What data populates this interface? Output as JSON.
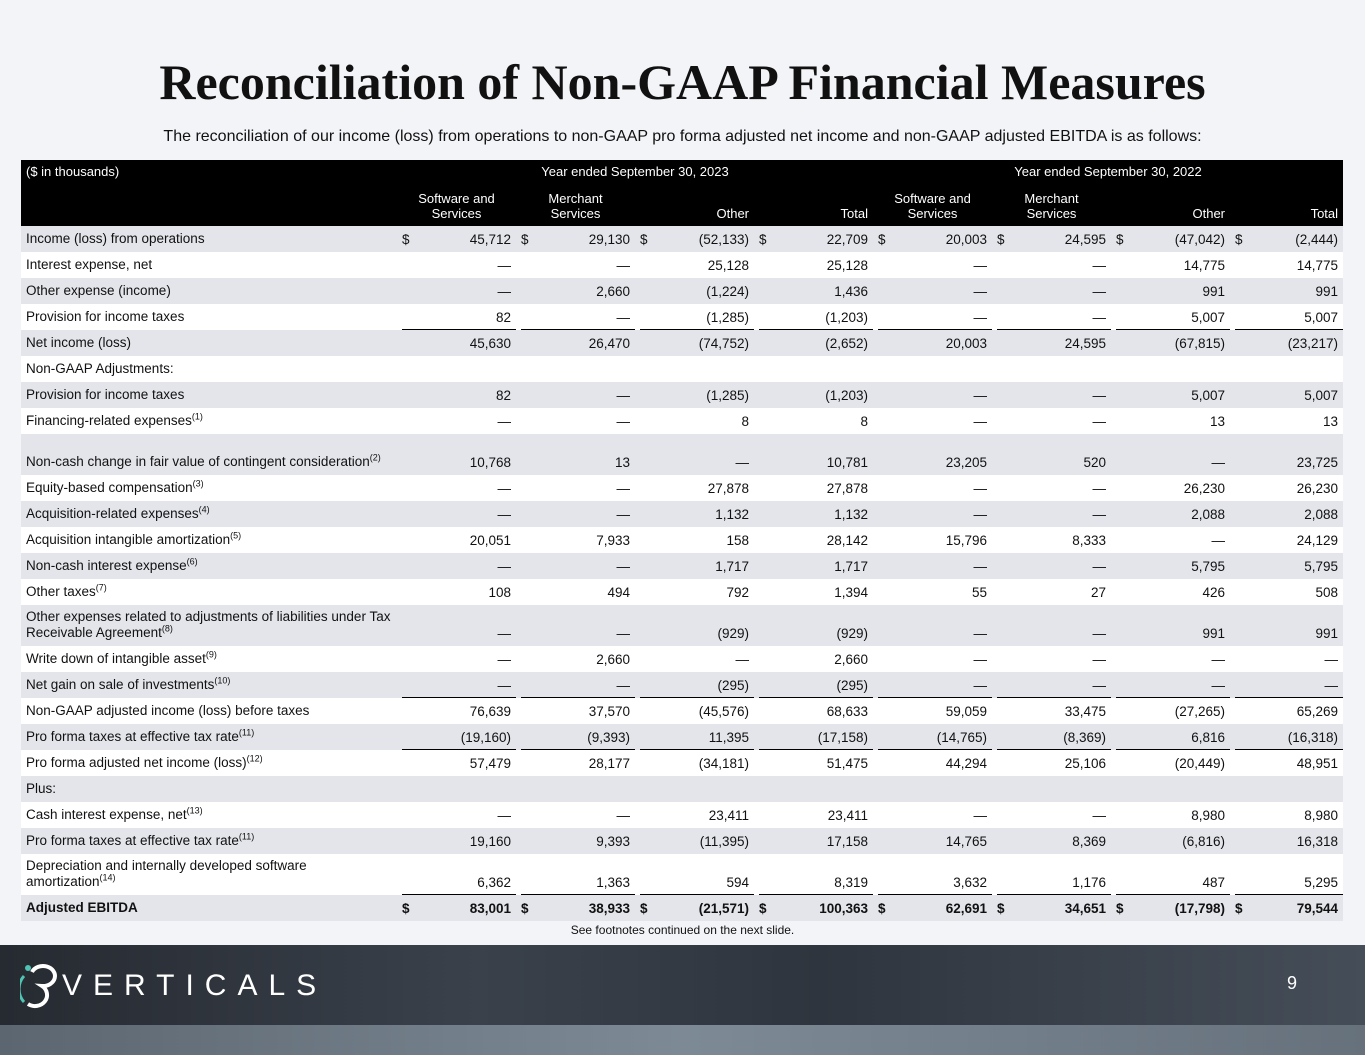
{
  "title": "Reconciliation of Non-GAAP Financial Measures",
  "subtitle": "The reconciliation of our income (loss) from operations to non-GAAP pro forma adjusted net income and non-GAAP adjusted EBITDA is as follows:",
  "table": {
    "units": "($ in thousands)",
    "currency_symbol": "$",
    "groups": [
      "Year ended September 30, 2023",
      "Year ended September 30, 2022"
    ],
    "columns": [
      "Software and Services",
      "Merchant Services",
      "Other",
      "Total",
      "Software and Services",
      "Merchant Services",
      "Other",
      "Total"
    ],
    "rows": [
      {
        "label": "Income (loss) from operations",
        "currency": true,
        "values": [
          "45,712",
          "29,130",
          "(52,133)",
          "22,709",
          "20,003",
          "24,595",
          "(47,042)",
          "(2,444)"
        ]
      },
      {
        "label": "Interest expense, net",
        "values": [
          "—",
          "—",
          "25,128",
          "25,128",
          "—",
          "—",
          "14,775",
          "14,775"
        ]
      },
      {
        "label": "Other expense (income)",
        "values": [
          "—",
          "2,660",
          "(1,224)",
          "1,436",
          "—",
          "—",
          "991",
          "991"
        ]
      },
      {
        "label": "Provision for income taxes",
        "underline": true,
        "values": [
          "82",
          "—",
          "(1,285)",
          "(1,203)",
          "—",
          "—",
          "5,007",
          "5,007"
        ]
      },
      {
        "label": "Net income (loss)",
        "values": [
          "45,630",
          "26,470",
          "(74,752)",
          "(2,652)",
          "20,003",
          "24,595",
          "(67,815)",
          "(23,217)"
        ]
      },
      {
        "label": "Non-GAAP Adjustments:"
      },
      {
        "label": "Provision for income taxes",
        "values": [
          "82",
          "—",
          "(1,285)",
          "(1,203)",
          "—",
          "—",
          "5,007",
          "5,007"
        ]
      },
      {
        "label": "Financing-related expenses",
        "note": "(1)",
        "values": [
          "—",
          "—",
          "8",
          "8",
          "—",
          "—",
          "13",
          "13"
        ]
      },
      {
        "label": "Non-cash change in fair value of contingent consideration",
        "note": "(2)",
        "values": [
          "10,768",
          "13",
          "—",
          "10,781",
          "23,205",
          "520",
          "—",
          "23,725"
        ]
      },
      {
        "label": "Equity-based compensation",
        "note": "(3)",
        "values": [
          "—",
          "—",
          "27,878",
          "27,878",
          "—",
          "—",
          "26,230",
          "26,230"
        ]
      },
      {
        "label": "Acquisition-related expenses",
        "note": "(4)",
        "values": [
          "—",
          "—",
          "1,132",
          "1,132",
          "—",
          "—",
          "2,088",
          "2,088"
        ]
      },
      {
        "label": "Acquisition intangible amortization",
        "note": "(5)",
        "values": [
          "20,051",
          "7,933",
          "158",
          "28,142",
          "15,796",
          "8,333",
          "—",
          "24,129"
        ]
      },
      {
        "label": "Non-cash interest expense",
        "note": "(6)",
        "values": [
          "—",
          "—",
          "1,717",
          "1,717",
          "—",
          "—",
          "5,795",
          "5,795"
        ]
      },
      {
        "label": "Other taxes",
        "note": "(7)",
        "values": [
          "108",
          "494",
          "792",
          "1,394",
          "55",
          "27",
          "426",
          "508"
        ]
      },
      {
        "label": "Other expenses related to adjustments of liabilities under Tax Receivable Agreement",
        "note": "(8)",
        "values": [
          "—",
          "—",
          "(929)",
          "(929)",
          "—",
          "—",
          "991",
          "991"
        ]
      },
      {
        "label": "Write down of intangible asset",
        "note": "(9)",
        "values": [
          "—",
          "2,660",
          "—",
          "2,660",
          "—",
          "—",
          "—",
          "—"
        ]
      },
      {
        "label": "Net gain on sale of investments",
        "note": "(10)",
        "underline": true,
        "values": [
          "—",
          "—",
          "(295)",
          "(295)",
          "—",
          "—",
          "—",
          "—"
        ]
      },
      {
        "label": "Non-GAAP adjusted income (loss) before taxes",
        "values": [
          "76,639",
          "37,570",
          "(45,576)",
          "68,633",
          "59,059",
          "33,475",
          "(27,265)",
          "65,269"
        ]
      },
      {
        "label": "Pro forma taxes at effective tax rate",
        "note": "(11)",
        "underline": true,
        "values": [
          "(19,160)",
          "(9,393)",
          "11,395",
          "(17,158)",
          "(14,765)",
          "(8,369)",
          "6,816",
          "(16,318)"
        ]
      },
      {
        "label": "Pro forma adjusted net income (loss)",
        "note": "(12)",
        "values": [
          "57,479",
          "28,177",
          "(34,181)",
          "51,475",
          "44,294",
          "25,106",
          "(20,449)",
          "48,951"
        ]
      },
      {
        "label": "Plus:"
      },
      {
        "label": "Cash interest expense, net",
        "note": "(13)",
        "values": [
          "—",
          "—",
          "23,411",
          "23,411",
          "—",
          "—",
          "8,980",
          "8,980"
        ]
      },
      {
        "label": "Pro forma taxes at effective tax rate",
        "note": "(11)",
        "values": [
          "19,160",
          "9,393",
          "(11,395)",
          "17,158",
          "14,765",
          "8,369",
          "(6,816)",
          "16,318"
        ]
      },
      {
        "label": "Depreciation and internally developed software amortization",
        "note": "(14)",
        "underline": true,
        "values": [
          "6,362",
          "1,363",
          "594",
          "8,319",
          "3,632",
          "1,176",
          "487",
          "5,295"
        ]
      },
      {
        "label": "Adjusted EBITDA",
        "currency": true,
        "bold": true,
        "values": [
          "83,001",
          "38,933",
          "(21,571)",
          "100,363",
          "62,691",
          "34,651",
          "(17,798)",
          "79,544"
        ]
      }
    ]
  },
  "footnote": "See footnotes continued on the next slide.",
  "footer": {
    "logo": "VERTICALS",
    "page_number": "9"
  }
}
